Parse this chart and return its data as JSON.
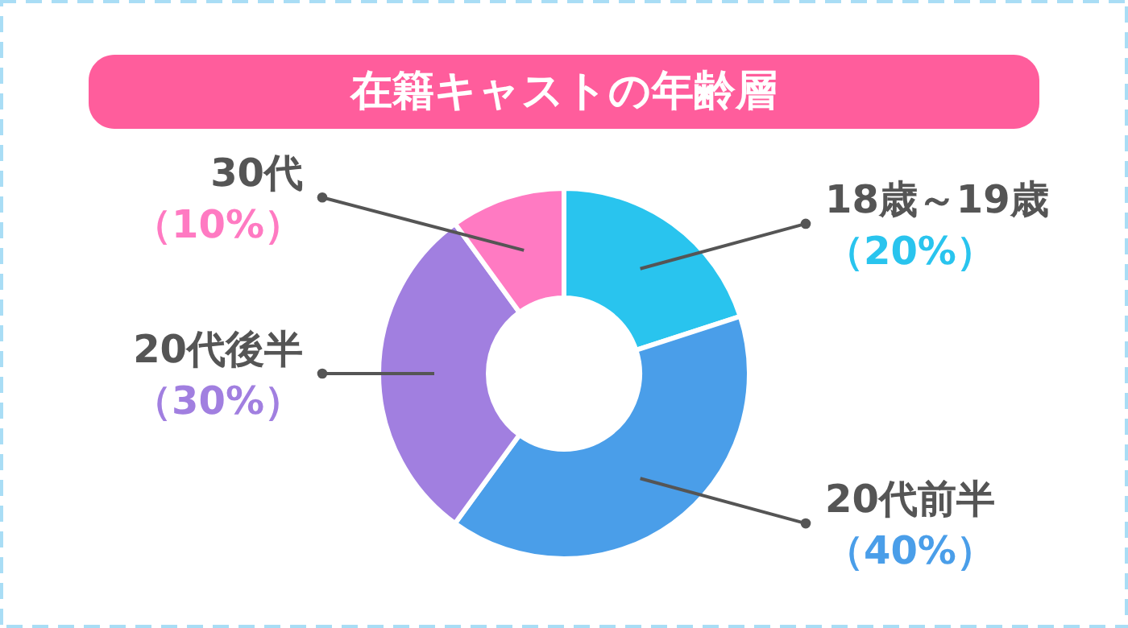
{
  "chart_data": {
    "type": "donut",
    "title": "在籍キャストの年齢層",
    "categories": [
      "18歳～19歳",
      "20代前半",
      "20代後半",
      "30代"
    ],
    "values": [
      20,
      40,
      30,
      10
    ],
    "colors": [
      "#29c4ee",
      "#4a9ee9",
      "#a17fe0",
      "#ff7ac2"
    ],
    "value_labels": [
      "（20%）",
      "（40%）",
      "（30%）",
      "（10%）"
    ]
  }
}
